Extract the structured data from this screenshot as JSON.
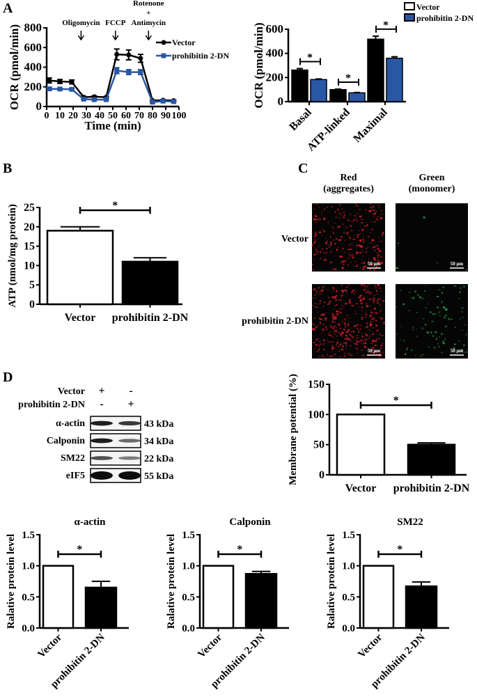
{
  "panel_labels": {
    "A": "A",
    "B": "B",
    "C": "C",
    "D": "D"
  },
  "colors": {
    "vector": "#000000",
    "prohibitin": "#2a57a3",
    "vector_bar_fill": "#ffffff",
    "red_signal": "#e0202a",
    "green_signal": "#2fb04a"
  },
  "chart_data": [
    {
      "id": "ocr_time",
      "type": "line",
      "xlabel": "Time (min)",
      "ylabel": "OCR (pmol/min)",
      "xlim": [
        0,
        100
      ],
      "ylim": [
        0,
        800
      ],
      "xticks": [
        "0",
        "10",
        "20",
        "30",
        "40",
        "50",
        "60",
        "70",
        "80",
        "90",
        "100"
      ],
      "yticks": [
        "0",
        "200",
        "400",
        "600",
        "800"
      ],
      "annotations": [
        {
          "lines": [
            "Oligomycin"
          ],
          "x": 26
        },
        {
          "lines": [
            "FCCP"
          ],
          "x": 52
        },
        {
          "lines": [
            "Rotenone",
            "+",
            "Antimycin"
          ],
          "x": 77
        }
      ],
      "legend": "right",
      "series": [
        {
          "name": "Vector",
          "color": "#000000",
          "marker": "circle",
          "x": [
            2,
            10,
            19,
            28,
            36,
            45,
            53,
            62,
            71,
            80,
            88,
            96
          ],
          "y": [
            265,
            255,
            250,
            95,
            100,
            95,
            530,
            525,
            490,
            60,
            65,
            60
          ],
          "err": [
            25,
            20,
            20,
            8,
            8,
            6,
            55,
            50,
            40,
            6,
            6,
            6
          ]
        },
        {
          "name": "prohibitin 2-DN",
          "color": "#2a57a3",
          "marker": "square",
          "x": [
            2,
            10,
            19,
            28,
            36,
            45,
            53,
            62,
            71,
            80,
            88,
            96
          ],
          "y": [
            180,
            178,
            175,
            75,
            70,
            70,
            365,
            350,
            350,
            45,
            55,
            50
          ],
          "err": [
            15,
            8,
            8,
            6,
            6,
            6,
            30,
            25,
            25,
            6,
            6,
            6
          ]
        }
      ]
    },
    {
      "id": "ocr_bars",
      "type": "bar",
      "ylabel": "OCR (pmol/min)",
      "ylim": [
        0,
        600
      ],
      "yticks": [
        "0",
        "200",
        "400",
        "600"
      ],
      "categories": [
        "Basal",
        "ATP-linked",
        "Maximal"
      ],
      "legend": "top-right",
      "series": [
        {
          "name": "Vector",
          "values": [
            262,
            100,
            518
          ],
          "err": [
            12,
            4,
            25
          ]
        },
        {
          "name": "prohibitin 2-DN",
          "values": [
            183,
            73,
            360
          ],
          "err": [
            5,
            3,
            12
          ]
        }
      ],
      "significance": [
        "*",
        "*",
        "*"
      ]
    },
    {
      "id": "atp",
      "type": "bar",
      "ylabel": "ATP (nmol/mg protein)",
      "ylim": [
        0,
        25
      ],
      "yticks": [
        "0",
        "5",
        "10",
        "15",
        "20",
        "25"
      ],
      "categories": [
        "Vector",
        "prohibitin 2-DN"
      ],
      "values": [
        19,
        11
      ],
      "err": [
        1,
        1
      ],
      "significance": "*"
    },
    {
      "id": "membrane_potential",
      "type": "bar",
      "ylabel": "Membrane potential (%)",
      "ylim": [
        0,
        150
      ],
      "yticks": [
        "0",
        "50",
        "100",
        "150"
      ],
      "categories": [
        "Vector",
        "prohibitin 2-DN"
      ],
      "values": [
        100,
        50
      ],
      "err": [
        0,
        3
      ],
      "significance": "*"
    },
    {
      "id": "alpha_actin",
      "type": "bar",
      "title": "α-actin",
      "ylabel": "Ralative protein level",
      "ylim": [
        0,
        1.5
      ],
      "yticks": [
        "0.0",
        "0.5",
        "1.0",
        "1.5"
      ],
      "categories": [
        "Vector",
        "prohibitin 2-DN"
      ],
      "values": [
        1.0,
        0.65
      ],
      "err": [
        0,
        0.1
      ],
      "significance": "*"
    },
    {
      "id": "calponin",
      "type": "bar",
      "title": "Calponin",
      "ylabel": "Ralative protein level",
      "ylim": [
        0,
        1.5
      ],
      "yticks": [
        "0.0",
        "0.5",
        "1.0",
        "1.5"
      ],
      "categories": [
        "Vector",
        "prohibitin 2-DN"
      ],
      "values": [
        1.0,
        0.87
      ],
      "err": [
        0,
        0.04
      ],
      "significance": "*"
    },
    {
      "id": "sm22",
      "type": "bar",
      "title": "SM22",
      "ylabel": "Ralative protein level",
      "ylim": [
        0,
        1.5
      ],
      "yticks": [
        "0.0",
        "0.5",
        "1.0",
        "1.5"
      ],
      "categories": [
        "Vector",
        "prohibitin 2-DN"
      ],
      "values": [
        1.0,
        0.67
      ],
      "err": [
        0,
        0.07
      ],
      "significance": "*"
    }
  ],
  "microscopy": {
    "columns": [
      "Red\n(aggregates)",
      "Green\n(monomer)"
    ],
    "column_lines": [
      [
        "Red",
        "(aggregates)"
      ],
      [
        "Green",
        "(monomer)"
      ]
    ],
    "rows": [
      "Vector",
      "prohibitin 2-DN"
    ],
    "scale_bar": "50 μm"
  },
  "western_blot": {
    "conditions": [
      {
        "label": "Vector",
        "lanes": [
          "+",
          "-"
        ]
      },
      {
        "label": "prohibitin 2-DN",
        "lanes": [
          "-",
          "+"
        ]
      }
    ],
    "bands": [
      {
        "protein": "α-actin",
        "size": "43 kDa",
        "intensity": [
          0.9,
          0.75
        ]
      },
      {
        "protein": "Calponin",
        "size": "34 kDa",
        "intensity": [
          0.9,
          0.45
        ]
      },
      {
        "protein": "SM22",
        "size": "22 kDa",
        "intensity": [
          0.6,
          0.35
        ]
      },
      {
        "protein": "eIF5",
        "size": "55 kDa",
        "intensity": [
          1.0,
          1.0
        ]
      }
    ]
  }
}
